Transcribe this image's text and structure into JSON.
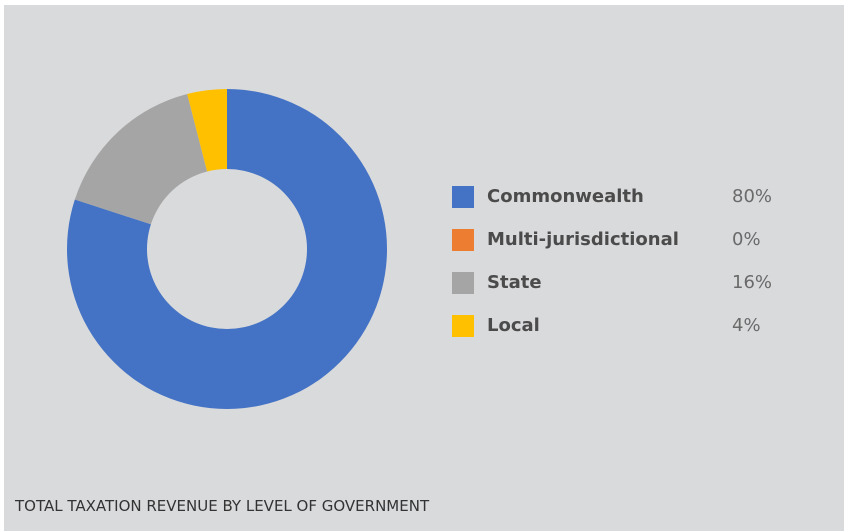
{
  "chart_data": {
    "type": "pie",
    "title": "TOTAL TAXATION REVENUE BY LEVEL OF GOVERNMENT",
    "donut": true,
    "legend_position": "right",
    "categories": [
      "Commonwealth",
      "Multi-jurisdictional",
      "State",
      "Local"
    ],
    "values": [
      80,
      0,
      16,
      4
    ],
    "value_labels": [
      "80%",
      "0%",
      "16%",
      "4%"
    ],
    "colors": [
      "#4472c4",
      "#ed7d31",
      "#a5a5a5",
      "#ffc000"
    ]
  },
  "caption": "TOTAL TAXATION REVENUE BY LEVEL OF GOVERNMENT",
  "colors": {
    "background": "#d9dadc"
  }
}
